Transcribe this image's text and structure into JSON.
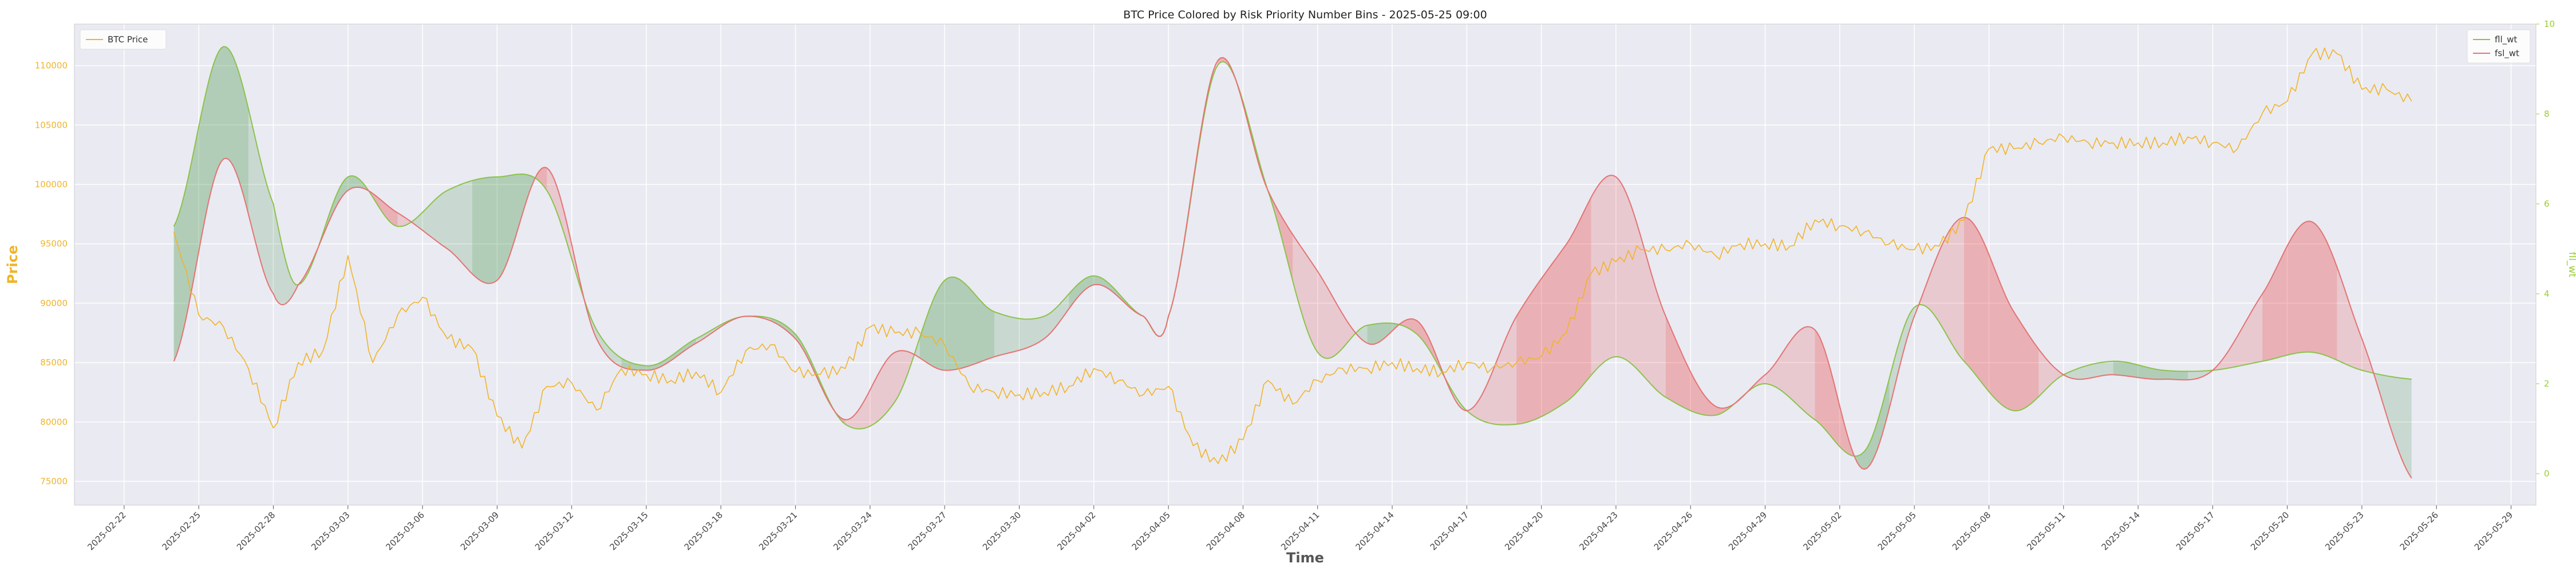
{
  "chart_data": {
    "type": "line",
    "title": "BTC Price Colored by Risk Priority Number Bins - 2025-05-25 09:00",
    "xlabel": "Time",
    "ylabel_left": "Price",
    "ylabel_right": "fll_wt",
    "x_ticks": [
      "2025-02-22",
      "2025-02-25",
      "2025-02-28",
      "2025-03-03",
      "2025-03-06",
      "2025-03-09",
      "2025-03-12",
      "2025-03-15",
      "2025-03-18",
      "2025-03-21",
      "2025-03-24",
      "2025-03-27",
      "2025-03-30",
      "2025-04-02",
      "2025-04-05",
      "2025-04-08",
      "2025-04-11",
      "2025-04-14",
      "2025-04-17",
      "2025-04-20",
      "2025-04-23",
      "2025-04-26",
      "2025-04-29",
      "2025-05-02",
      "2025-05-05",
      "2025-05-08",
      "2025-05-11",
      "2025-05-14",
      "2025-05-17",
      "2025-05-20",
      "2025-05-23",
      "2025-05-26",
      "2025-05-29"
    ],
    "x_range": [
      "2025-02-20",
      "2025-05-30"
    ],
    "y_left_ticks": [
      75000,
      80000,
      85000,
      90000,
      95000,
      100000,
      105000,
      110000
    ],
    "y_left_range": [
      73000,
      113500
    ],
    "y_right_ticks": [
      0,
      2,
      4,
      6,
      8,
      10
    ],
    "y_right_range": [
      -0.7,
      10
    ],
    "grid": true,
    "legend_left": [
      "BTC Price"
    ],
    "legend_right": [
      "fll_wt",
      "fsl_wt"
    ],
    "colors": {
      "price": "#f0b429",
      "fll": "#8bc34a",
      "fsl": "#e57373",
      "green_fill": "#388e3c",
      "red_fill": "#e53935",
      "plot_bg": "#eaeaf2"
    },
    "series": [
      {
        "name": "BTC Price",
        "axis": "left",
        "x": [
          "2025-02-24",
          "2025-02-25",
          "2025-02-26",
          "2025-02-27",
          "2025-02-28",
          "2025-03-01",
          "2025-03-02",
          "2025-03-03",
          "2025-03-04",
          "2025-03-05",
          "2025-03-06",
          "2025-03-07",
          "2025-03-08",
          "2025-03-09",
          "2025-03-10",
          "2025-03-11",
          "2025-03-12",
          "2025-03-13",
          "2025-03-14",
          "2025-03-15",
          "2025-03-16",
          "2025-03-17",
          "2025-03-18",
          "2025-03-19",
          "2025-03-20",
          "2025-03-21",
          "2025-03-22",
          "2025-03-23",
          "2025-03-24",
          "2025-03-25",
          "2025-03-26",
          "2025-03-27",
          "2025-03-28",
          "2025-03-29",
          "2025-03-30",
          "2025-03-31",
          "2025-04-01",
          "2025-04-02",
          "2025-04-03",
          "2025-04-04",
          "2025-04-05",
          "2025-04-06",
          "2025-04-07",
          "2025-04-08",
          "2025-04-09",
          "2025-04-10",
          "2025-04-11",
          "2025-04-12",
          "2025-04-13",
          "2025-04-14",
          "2025-04-15",
          "2025-04-16",
          "2025-04-17",
          "2025-04-18",
          "2025-04-19",
          "2025-04-20",
          "2025-04-21",
          "2025-04-22",
          "2025-04-23",
          "2025-04-24",
          "2025-04-25",
          "2025-04-26",
          "2025-04-27",
          "2025-04-28",
          "2025-04-29",
          "2025-04-30",
          "2025-05-01",
          "2025-05-02",
          "2025-05-03",
          "2025-05-04",
          "2025-05-05",
          "2025-05-06",
          "2025-05-07",
          "2025-05-08",
          "2025-05-09",
          "2025-05-10",
          "2025-05-11",
          "2025-05-12",
          "2025-05-13",
          "2025-05-14",
          "2025-05-15",
          "2025-05-16",
          "2025-05-17",
          "2025-05-18",
          "2025-05-19",
          "2025-05-20",
          "2025-05-21",
          "2025-05-22",
          "2025-05-23",
          "2025-05-24",
          "2025-05-25"
        ],
        "values": [
          96000,
          89000,
          88000,
          84500,
          79500,
          85000,
          86000,
          94000,
          85000,
          89000,
          90500,
          87000,
          86200,
          80500,
          77800,
          83000,
          83300,
          81000,
          84500,
          84000,
          83500,
          84200,
          82500,
          86000,
          86500,
          84200,
          84000,
          84500,
          88000,
          87500,
          87500,
          86500,
          83000,
          82500,
          82300,
          82500,
          83000,
          84500,
          83500,
          82300,
          83000,
          78000,
          76500,
          78500,
          83500,
          81500,
          83500,
          84500,
          84500,
          85000,
          84500,
          84200,
          85000,
          84500,
          85000,
          85500,
          87500,
          92500,
          93500,
          94500,
          94500,
          95000,
          94000,
          95000,
          95000,
          94800,
          97000,
          96500,
          96000,
          95000,
          94500,
          94800,
          97000,
          103000,
          103000,
          103500,
          104000,
          103500,
          103500,
          103500,
          103500,
          104000,
          103500,
          103000,
          106000,
          107000,
          111000,
          111000,
          108000,
          108000,
          107000
        ]
      },
      {
        "name": "fll_wt",
        "axis": "right",
        "x": [
          "2025-02-24",
          "2025-02-26",
          "2025-02-28",
          "2025-03-01",
          "2025-03-03",
          "2025-03-05",
          "2025-03-07",
          "2025-03-09",
          "2025-03-11",
          "2025-03-13",
          "2025-03-15",
          "2025-03-17",
          "2025-03-19",
          "2025-03-21",
          "2025-03-23",
          "2025-03-25",
          "2025-03-27",
          "2025-03-29",
          "2025-03-31",
          "2025-04-02",
          "2025-04-04",
          "2025-04-05",
          "2025-04-07",
          "2025-04-09",
          "2025-04-11",
          "2025-04-13",
          "2025-04-15",
          "2025-04-17",
          "2025-04-19",
          "2025-04-21",
          "2025-04-23",
          "2025-04-25",
          "2025-04-27",
          "2025-04-29",
          "2025-05-01",
          "2025-05-03",
          "2025-05-05",
          "2025-05-07",
          "2025-05-09",
          "2025-05-11",
          "2025-05-13",
          "2025-05-15",
          "2025-05-17",
          "2025-05-19",
          "2025-05-21",
          "2025-05-23",
          "2025-05-25"
        ],
        "values": [
          5.5,
          9.5,
          6.0,
          4.2,
          6.6,
          5.5,
          6.3,
          6.6,
          6.3,
          3.2,
          2.4,
          3.0,
          3.5,
          3.1,
          1.1,
          1.6,
          4.3,
          3.6,
          3.5,
          4.4,
          3.5,
          3.5,
          9.1,
          6.3,
          2.7,
          3.3,
          3.1,
          1.4,
          1.1,
          1.6,
          2.6,
          1.7,
          1.3,
          2.0,
          1.2,
          0.5,
          3.7,
          2.5,
          1.4,
          2.2,
          2.5,
          2.3,
          2.3,
          2.5,
          2.7,
          2.3,
          2.1
        ]
      },
      {
        "name": "fsl_wt",
        "axis": "right",
        "x": [
          "2025-02-24",
          "2025-02-26",
          "2025-02-28",
          "2025-03-01",
          "2025-03-03",
          "2025-03-05",
          "2025-03-07",
          "2025-03-09",
          "2025-03-11",
          "2025-03-13",
          "2025-03-15",
          "2025-03-17",
          "2025-03-19",
          "2025-03-21",
          "2025-03-23",
          "2025-03-25",
          "2025-03-27",
          "2025-03-29",
          "2025-03-31",
          "2025-04-02",
          "2025-04-04",
          "2025-04-05",
          "2025-04-07",
          "2025-04-09",
          "2025-04-11",
          "2025-04-13",
          "2025-04-15",
          "2025-04-17",
          "2025-04-19",
          "2025-04-21",
          "2025-04-23",
          "2025-04-25",
          "2025-04-27",
          "2025-04-29",
          "2025-05-01",
          "2025-05-03",
          "2025-05-05",
          "2025-05-07",
          "2025-05-09",
          "2025-05-11",
          "2025-05-13",
          "2025-05-15",
          "2025-05-17",
          "2025-05-19",
          "2025-05-21",
          "2025-05-23",
          "2025-05-25"
        ],
        "values": [
          2.5,
          7.0,
          4.0,
          4.2,
          6.3,
          5.8,
          5.0,
          4.3,
          6.8,
          3.0,
          2.3,
          2.9,
          3.5,
          3.0,
          1.2,
          2.7,
          2.3,
          2.6,
          3.0,
          4.2,
          3.5,
          3.5,
          9.2,
          6.3,
          4.5,
          2.9,
          3.4,
          1.4,
          3.5,
          5.1,
          6.6,
          3.5,
          1.5,
          2.2,
          3.2,
          0.1,
          3.5,
          5.7,
          3.6,
          2.2,
          2.2,
          2.1,
          2.3,
          4.0,
          5.6,
          3.0,
          -0.1
        ]
      }
    ]
  }
}
